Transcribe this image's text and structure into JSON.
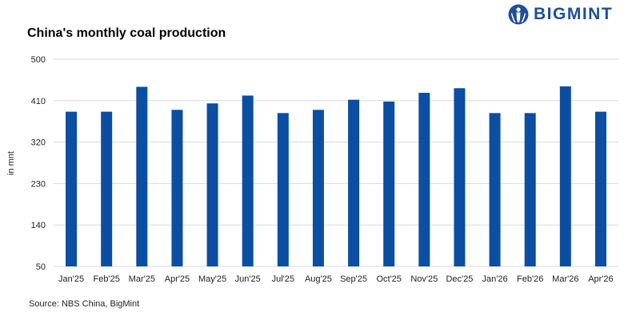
{
  "header": {
    "title": "China's monthly coal production",
    "brand": "BIGMINT"
  },
  "footer": {
    "source": "Source: NBS China, BigMint"
  },
  "colors": {
    "bar": "#0b4ea2",
    "grid": "#d9d9d9",
    "brand": "#1f4e9a"
  },
  "chart_data": {
    "type": "bar",
    "title": "China's monthly coal production",
    "xlabel": "",
    "ylabel": "in mnt",
    "ylim": [
      50,
      500
    ],
    "yticks": [
      50,
      140,
      230,
      320,
      410,
      500
    ],
    "grid": true,
    "legend": "none",
    "categories": [
      "Jan'25",
      "Feb'25",
      "Mar'25",
      "Apr'25",
      "May'25",
      "Jun'25",
      "Jul'25",
      "Aug'25",
      "Sep'25",
      "Oct'25",
      "Nov'25",
      "Dec'25",
      "Jan'26",
      "Feb'26",
      "Mar'26",
      "Apr'26"
    ],
    "values": [
      386,
      386,
      440,
      390,
      404,
      421,
      383,
      390,
      412,
      408,
      427,
      437,
      383,
      383,
      441,
      386
    ]
  }
}
